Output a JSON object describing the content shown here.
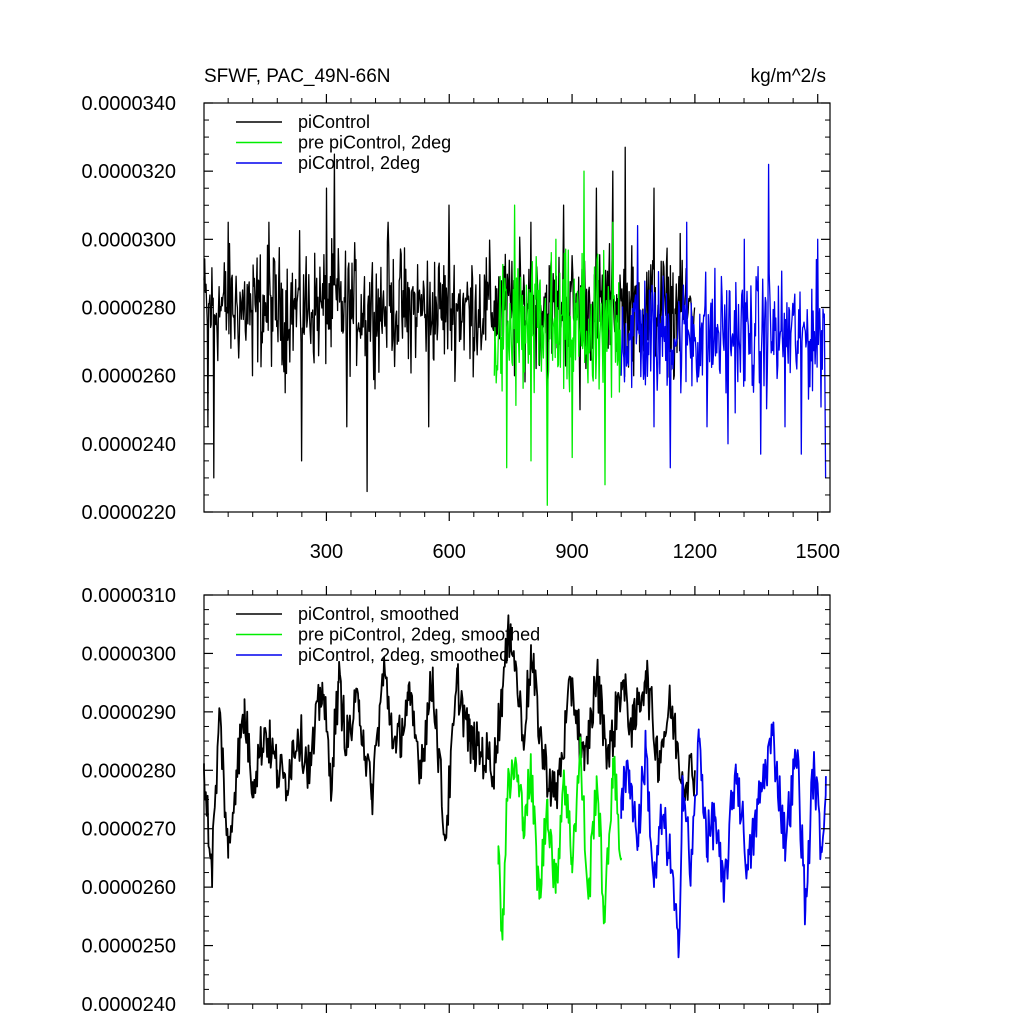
{
  "chart_data": [
    {
      "type": "line",
      "title": "SFWF, PAC_49N-66N",
      "units": "kg/m^2/s",
      "xlim": [
        1,
        1530
      ],
      "ylim": [
        2.2e-05,
        3.4e-05
      ],
      "x_ticks": [
        300,
        600,
        900,
        1200,
        1500
      ],
      "x_tick_labels": [
        "300",
        "600",
        "900",
        "1200",
        "1500"
      ],
      "y_ticks": [
        2.2e-05,
        2.4e-05,
        2.6e-05,
        2.8e-05,
        3e-05,
        3.2e-05,
        3.4e-05
      ],
      "y_tick_labels": [
        "0.0000220",
        "0.0000240",
        "0.0000260",
        "0.0000280",
        "0.0000300",
        "0.0000320",
        "0.0000340"
      ],
      "legend_position": "top-left",
      "series": [
        {
          "name": "piControl",
          "color": "#000000",
          "x_range": [
            1,
            1200
          ],
          "x": [
            1,
            10,
            25,
            60,
            120,
            160,
            200,
            240,
            300,
            320,
            330,
            350,
            400,
            450,
            500,
            550,
            600,
            650,
            700,
            760,
            800,
            840,
            880,
            920,
            960,
            980,
            1000,
            1030,
            1050,
            1100,
            1150,
            1200
          ],
          "y": [
            2.88e-05,
            2.45e-05,
            2.3e-05,
            3.05e-05,
            2.6e-05,
            3.05e-05,
            2.55e-05,
            2.35e-05,
            3.15e-05,
            3.25e-05,
            2.9e-05,
            2.45e-05,
            2.26e-05,
            3.05e-05,
            2.65e-05,
            2.45e-05,
            3.1e-05,
            2.65e-05,
            2.9e-05,
            2.6e-05,
            3.05e-05,
            2.45e-05,
            3.1e-05,
            2.5e-05,
            3.15e-05,
            2.7e-05,
            3.2e-05,
            3.27e-05,
            2.6e-05,
            3.15e-05,
            2.6e-05,
            2.8e-05
          ],
          "mean": 2.8e-05,
          "spread": 1.2e-06
        },
        {
          "name": "pre piControl, 2deg",
          "color": "#00ee00",
          "x_range": [
            710,
            1020
          ],
          "x": [
            710,
            740,
            760,
            800,
            840,
            860,
            900,
            930,
            950,
            980,
            1000,
            1020
          ],
          "y": [
            2.6e-05,
            2.33e-05,
            3.1e-05,
            2.35e-05,
            2.22e-05,
            3e-05,
            2.36e-05,
            3.2e-05,
            2.6e-05,
            2.28e-05,
            3.05e-05,
            2.6e-05
          ],
          "mean": 2.72e-05,
          "spread": 1.6e-06
        },
        {
          "name": "piControl, 2deg",
          "color": "#0000ee",
          "x_range": [
            1020,
            1520
          ],
          "x": [
            1020,
            1060,
            1100,
            1140,
            1180,
            1230,
            1280,
            1320,
            1360,
            1380,
            1420,
            1460,
            1500,
            1520
          ],
          "y": [
            2.6e-05,
            3.04e-05,
            2.45e-05,
            2.33e-05,
            3.05e-05,
            2.45e-05,
            2.4e-05,
            3e-05,
            2.37e-05,
            3.22e-05,
            2.45e-05,
            2.37e-05,
            3e-05,
            2.3e-05
          ],
          "mean": 2.72e-05,
          "spread": 1.3e-06
        }
      ]
    },
    {
      "type": "line",
      "ylim": [
        2.4e-05,
        3.1e-05
      ],
      "x_ticks": [
        300,
        600,
        900,
        1200,
        1500
      ],
      "y_ticks": [
        2.4e-05,
        2.5e-05,
        2.6e-05,
        2.7e-05,
        2.8e-05,
        2.9e-05,
        3e-05,
        3.1e-05
      ],
      "y_tick_labels": [
        "0.0000240",
        "0.0000250",
        "0.0000260",
        "0.0000270",
        "0.0000280",
        "0.0000290",
        "0.0000300",
        "0.0000310"
      ],
      "legend_position": "top-left",
      "series": [
        {
          "name": "piControl, smoothed",
          "color": "#000000",
          "x": [
            1,
            20,
            40,
            60,
            80,
            100,
            120,
            150,
            180,
            200,
            230,
            260,
            290,
            310,
            330,
            350,
            380,
            410,
            440,
            470,
            500,
            530,
            560,
            590,
            620,
            650,
            680,
            710,
            730,
            750,
            780,
            800,
            830,
            860,
            900,
            930,
            960,
            990,
            1020,
            1050,
            1080,
            1110,
            1140,
            1170,
            1200
          ],
          "y": [
            2.8e-05,
            2.63e-05,
            2.9e-05,
            2.65e-05,
            2.8e-05,
            2.9e-05,
            2.78e-05,
            2.87e-05,
            2.8e-05,
            2.78e-05,
            2.87e-05,
            2.8e-05,
            2.95e-05,
            2.78e-05,
            2.95e-05,
            2.85e-05,
            2.92e-05,
            2.75e-05,
            2.97e-05,
            2.83e-05,
            2.92e-05,
            2.81e-05,
            2.96e-05,
            2.68e-05,
            2.95e-05,
            2.85e-05,
            2.83e-05,
            2.81e-05,
            2.94e-05,
            3.05e-05,
            2.86e-05,
            2.99e-05,
            2.82e-05,
            2.75e-05,
            2.95e-05,
            2.8e-05,
            2.96e-05,
            2.82e-05,
            2.95e-05,
            2.87e-05,
            2.97e-05,
            2.82e-05,
            2.91e-05,
            2.79e-05,
            2.8e-05
          ]
        },
        {
          "name": "pre piControl, 2deg, smoothed",
          "color": "#00ee00",
          "x": [
            720,
            730,
            740,
            760,
            780,
            800,
            820,
            840,
            860,
            880,
            900,
            920,
            940,
            960,
            980,
            1000,
            1020
          ],
          "y": [
            2.67e-05,
            2.51e-05,
            2.75e-05,
            2.81e-05,
            2.72e-05,
            2.79e-05,
            2.58e-05,
            2.75e-05,
            2.59e-05,
            2.8e-05,
            2.65e-05,
            2.83e-05,
            2.58e-05,
            2.79e-05,
            2.54e-05,
            2.82e-05,
            2.65e-05
          ]
        },
        {
          "name": "piControl, 2deg, smoothed",
          "color": "#0000ee",
          "x": [
            1020,
            1040,
            1060,
            1080,
            1100,
            1120,
            1140,
            1160,
            1170,
            1190,
            1210,
            1230,
            1250,
            1270,
            1300,
            1330,
            1360,
            1390,
            1420,
            1450,
            1470,
            1490,
            1510,
            1520
          ],
          "y": [
            2.75e-05,
            2.8e-05,
            2.68e-05,
            2.84e-05,
            2.6e-05,
            2.72e-05,
            2.65e-05,
            2.48e-05,
            2.79e-05,
            2.62e-05,
            2.85e-05,
            2.68e-05,
            2.72e-05,
            2.58e-05,
            2.81e-05,
            2.63e-05,
            2.76e-05,
            2.86e-05,
            2.68e-05,
            2.83e-05,
            2.56e-05,
            2.81e-05,
            2.66e-05,
            2.79e-05
          ]
        }
      ]
    }
  ]
}
